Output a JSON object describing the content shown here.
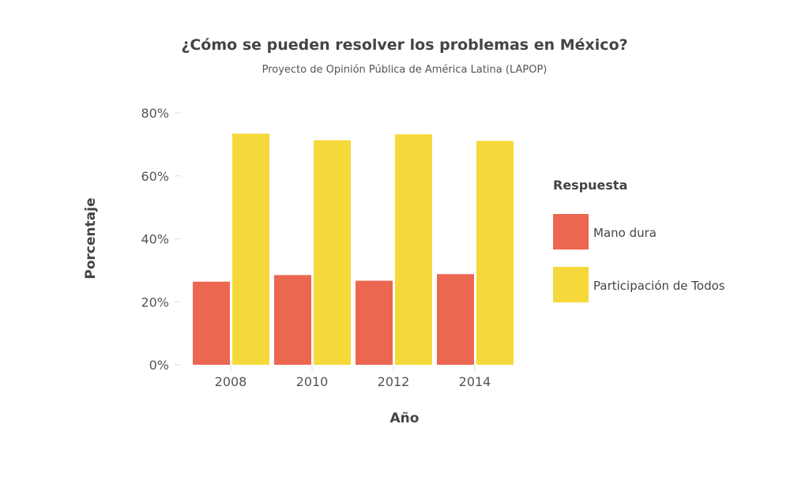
{
  "chart_data": {
    "type": "bar",
    "title": "¿Cómo se pueden resolver los problemas en México?",
    "subtitle": "Proyecto de Opinión Pública de América Latina (LAPOP)",
    "xlabel": "Año",
    "ylabel": "Porcentaje",
    "categories": [
      "2008",
      "2010",
      "2012",
      "2014"
    ],
    "ylim": [
      0,
      80
    ],
    "yticks": [
      "0%",
      "20%",
      "40%",
      "60%",
      "80%"
    ],
    "grid": false,
    "legend_title": "Respuesta",
    "legend_position": "right",
    "series": [
      {
        "name": "Mano dura",
        "color": "#EC6752",
        "values": [
          26.4,
          28.5,
          26.7,
          28.8
        ]
      },
      {
        "name": "Participación de Todos",
        "color": "#F5D93B",
        "values": [
          73.4,
          71.3,
          73.2,
          71.1
        ]
      }
    ]
  }
}
